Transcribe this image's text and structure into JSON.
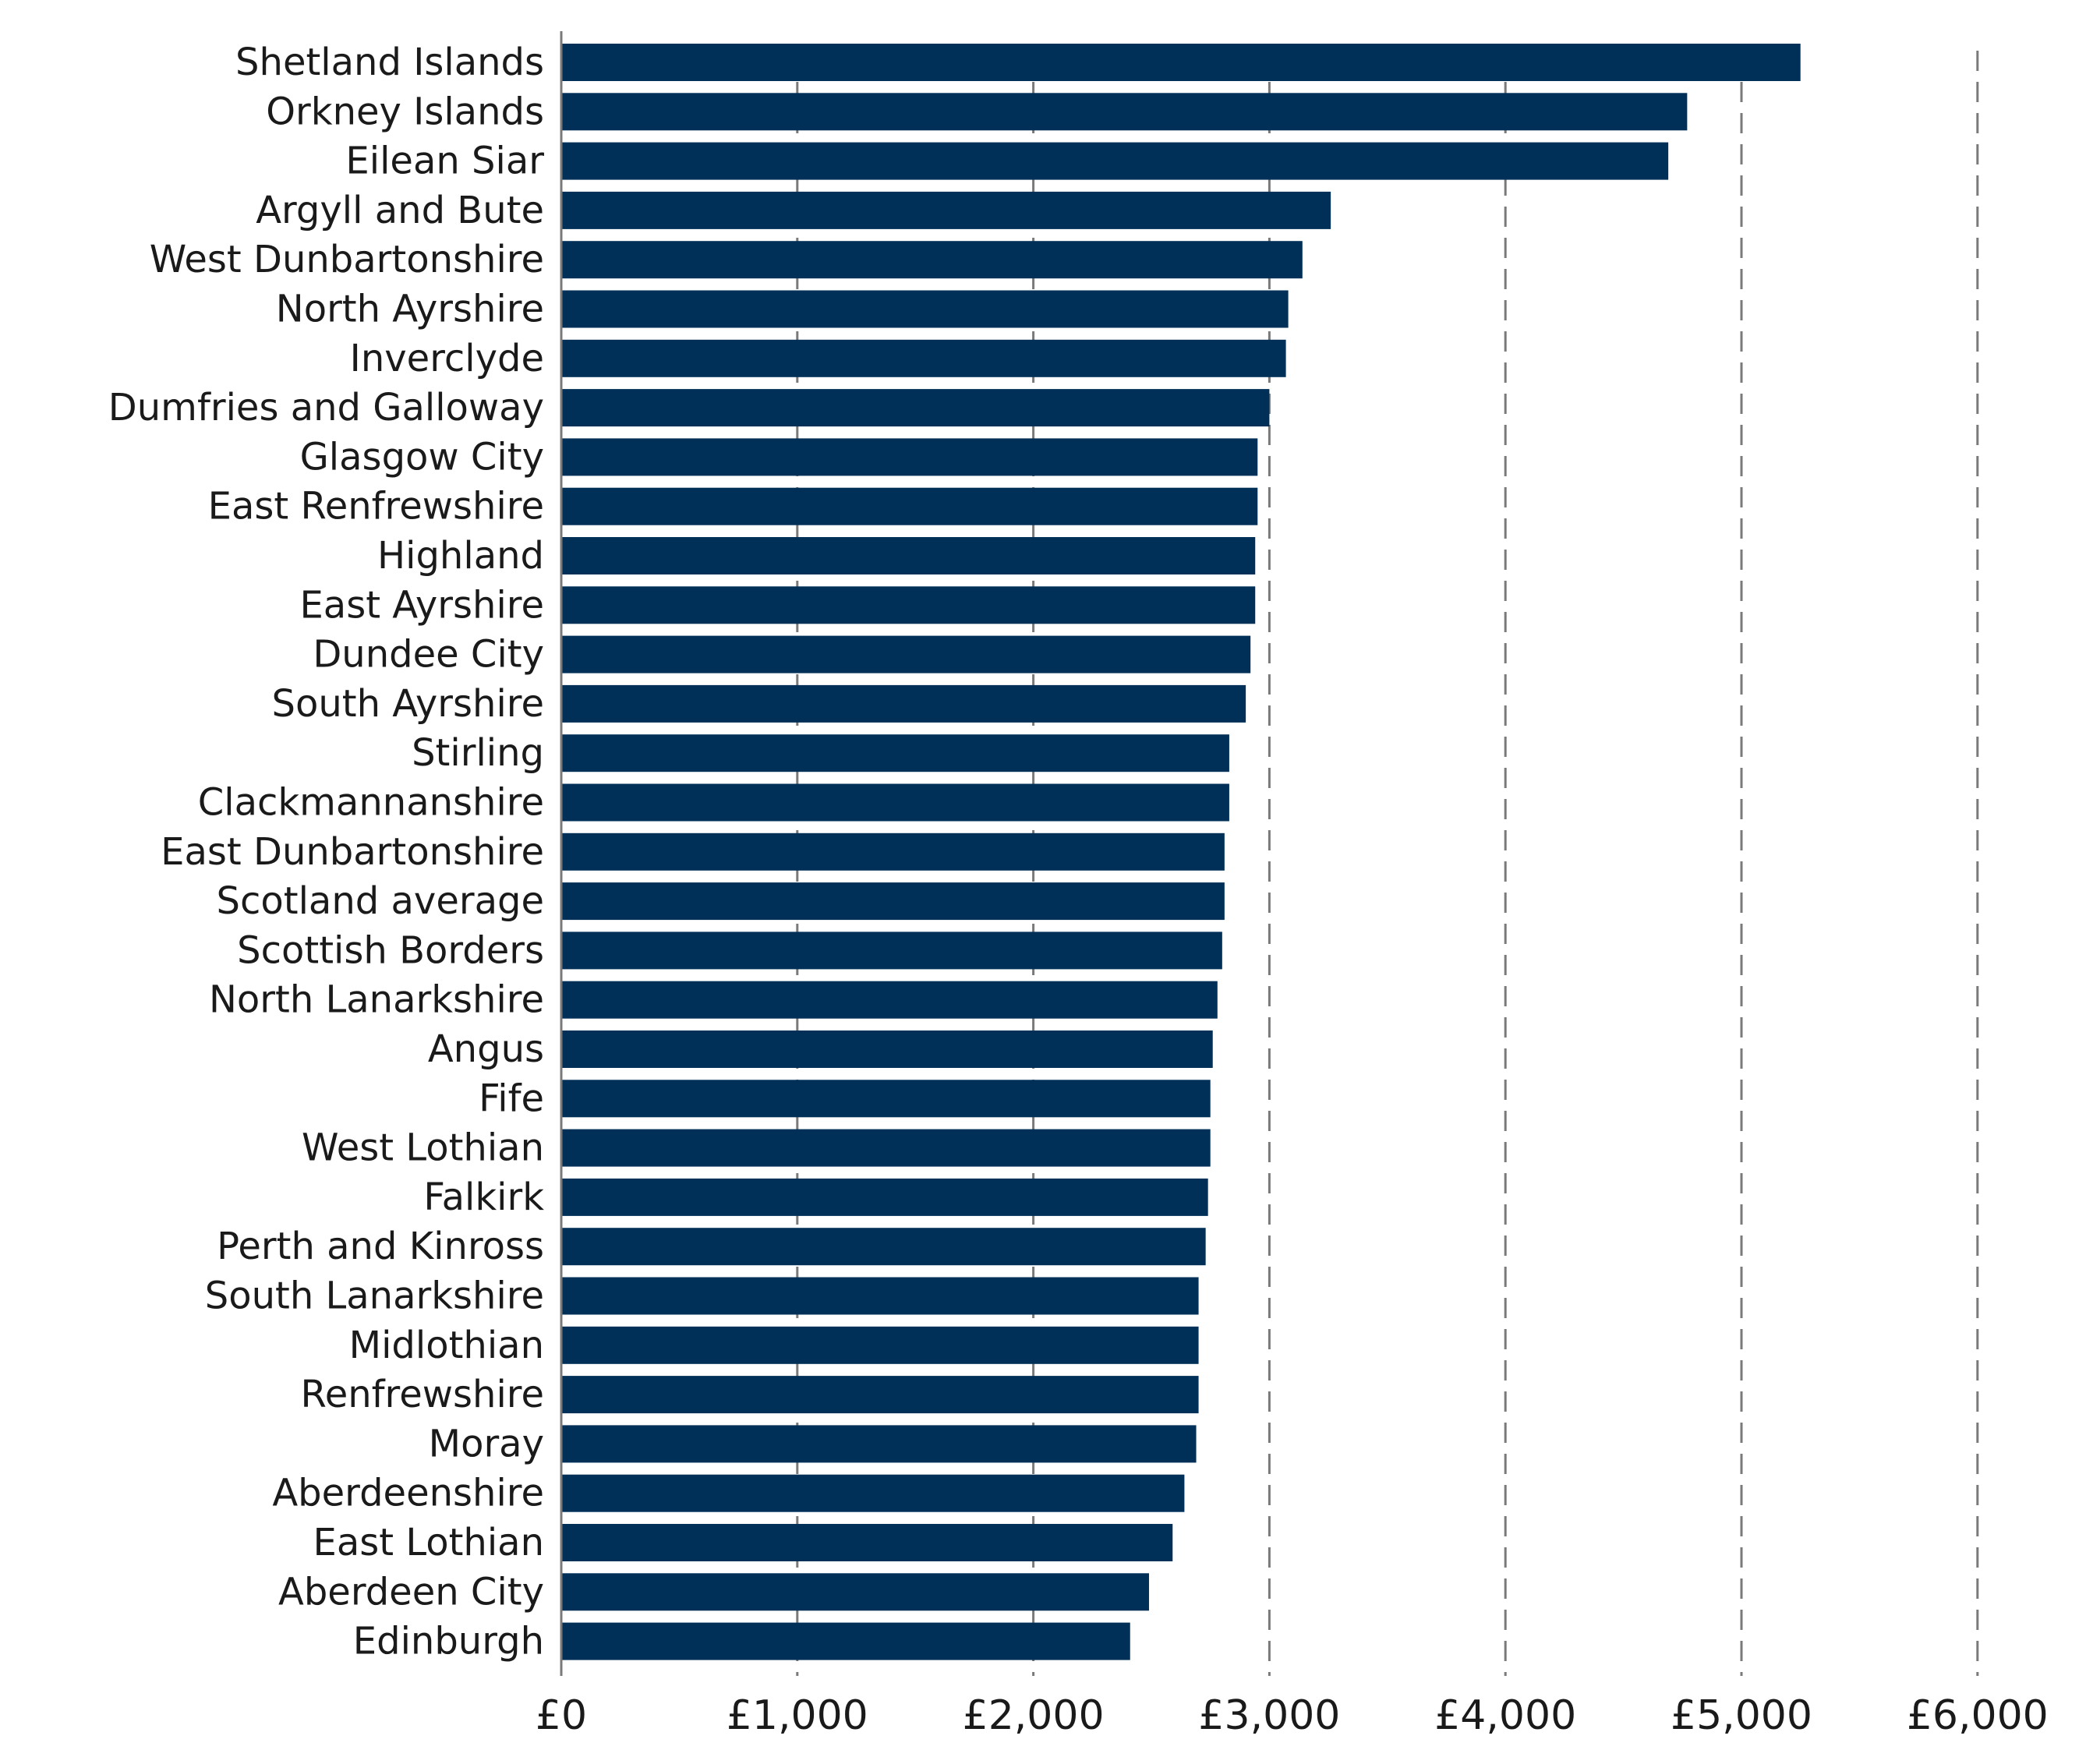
{
  "chart_data": {
    "type": "bar",
    "orientation": "horizontal",
    "title": "",
    "xlabel": "",
    "ylabel": "",
    "xlim": [
      0,
      6000
    ],
    "x_ticks": [
      0,
      1000,
      2000,
      3000,
      4000,
      5000,
      6000
    ],
    "x_tick_labels": [
      "£0",
      "£1,000",
      "£2,000",
      "£3,000",
      "£4,000",
      "£5,000",
      "£6,000"
    ],
    "grid": "vertical dashed",
    "bar_color": "#003057",
    "categories": [
      "Shetland Islands",
      "Orkney Islands",
      "Eilean Siar",
      "Argyll and Bute",
      "West Dunbartonshire",
      "North Ayrshire",
      "Inverclyde",
      "Dumfries and Galloway",
      "Glasgow City",
      "East Renfrewshire",
      "Highland",
      "East Ayrshire",
      "Dundee City",
      "South Ayrshire",
      "Stirling",
      "Clackmannanshire",
      "East Dunbartonshire",
      "Scotland average",
      "Scottish Borders",
      "North Lanarkshire",
      "Angus",
      "Fife",
      "West Lothian",
      "Falkirk",
      "Perth and Kinross",
      "South Lanarkshire",
      "Midlothian",
      "Renfrewshire",
      "Moray",
      "Aberdeenshire",
      "East Lothian",
      "Aberdeen City",
      "Edinburgh"
    ],
    "values": [
      5250,
      4770,
      4690,
      3260,
      3140,
      3080,
      3070,
      3000,
      2950,
      2950,
      2940,
      2940,
      2920,
      2900,
      2830,
      2830,
      2810,
      2810,
      2800,
      2780,
      2760,
      2750,
      2750,
      2740,
      2730,
      2700,
      2700,
      2700,
      2690,
      2640,
      2590,
      2490,
      2410
    ]
  }
}
